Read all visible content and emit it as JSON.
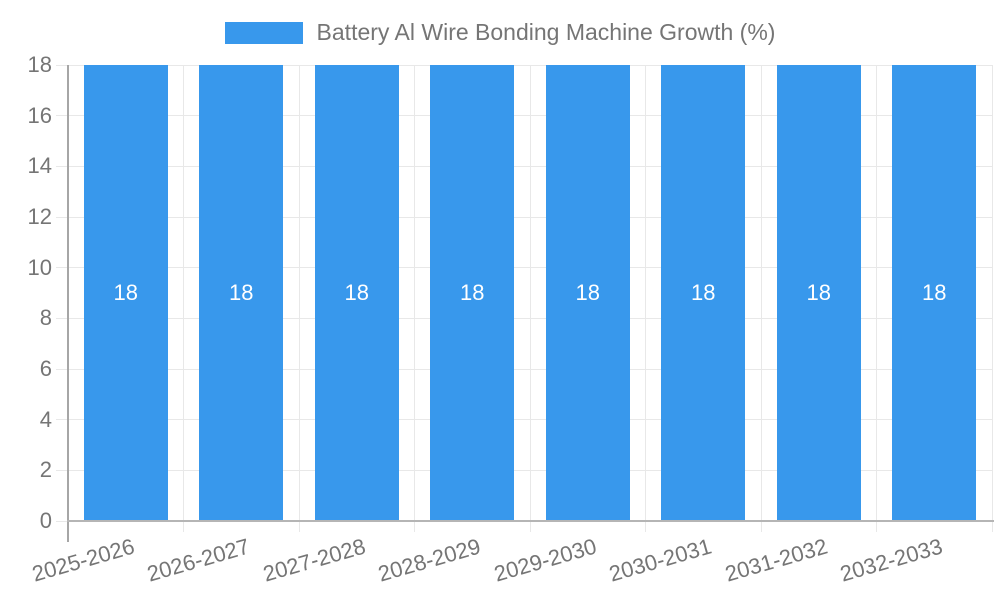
{
  "chart_data": {
    "type": "bar",
    "title": "Battery Al Wire Bonding Machine Growth (%)",
    "legend_entries": [
      "Battery Al Wire Bonding Machine Growth (%)"
    ],
    "legend_position": "top",
    "categories": [
      "2025-2026",
      "2026-2027",
      "2027-2028",
      "2028-2029",
      "2029-2030",
      "2030-2031",
      "2031-2032",
      "2032-2033"
    ],
    "series": [
      {
        "name": "Battery Al Wire Bonding Machine Growth (%)",
        "values": [
          18,
          18,
          18,
          18,
          18,
          18,
          18,
          18
        ]
      }
    ],
    "value_labels": [
      "18",
      "18",
      "18",
      "18",
      "18",
      "18",
      "18",
      "18"
    ],
    "xlabel": "",
    "ylabel": "",
    "ylim": [
      0,
      18
    ],
    "yticks": [
      0,
      2,
      4,
      6,
      8,
      10,
      12,
      14,
      16,
      18
    ],
    "ytick_labels": [
      "0",
      "2",
      "4",
      "6",
      "8",
      "10",
      "12",
      "14",
      "16",
      "18"
    ],
    "grid": "on",
    "x_label_rotation_deg": -16,
    "colors": {
      "bar": "#3898ec",
      "grid": "#e8e8e8",
      "axis": "#a6a6a6",
      "axis_bottom": "#b5b5b5",
      "tick_text": "#757575",
      "value_label_text": "#ffffff",
      "background": "#ffffff"
    }
  }
}
